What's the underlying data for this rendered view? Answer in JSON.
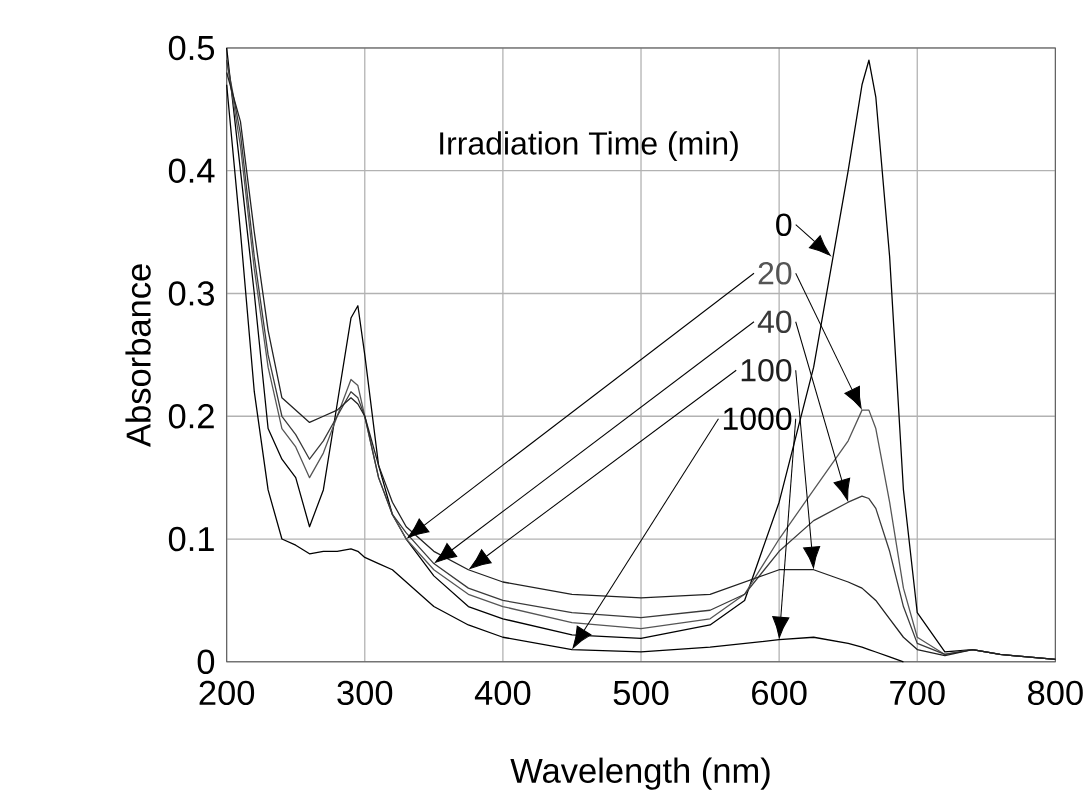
{
  "chart_data": {
    "type": "line",
    "legend_title": "Irradiation Time (min)",
    "xlabel": "Wavelength (nm)",
    "ylabel": "Absorbance",
    "x": [
      200,
      210,
      220,
      230,
      240,
      250,
      260,
      270,
      280,
      290,
      295,
      300,
      310,
      320,
      330,
      350,
      375,
      400,
      450,
      500,
      550,
      575,
      600,
      625,
      650,
      660,
      665,
      670,
      680,
      690,
      700,
      720,
      740,
      760,
      800
    ],
    "xlim": [
      200,
      800
    ],
    "xticks": [
      200,
      300,
      400,
      500,
      600,
      700,
      800
    ],
    "ylim": [
      0,
      0.5
    ],
    "yticks": [
      0,
      0.1,
      0.2,
      0.3,
      0.4,
      0.5
    ],
    "grid": true,
    "legend": "top right",
    "marker": "none",
    "line_style": "solid",
    "series": [
      {
        "name": "0",
        "color": "#000000",
        "values": [
          0.5,
          0.4,
          0.3,
          0.19,
          0.165,
          0.15,
          0.11,
          0.14,
          0.21,
          0.28,
          0.29,
          0.25,
          0.16,
          0.12,
          0.1,
          0.07,
          0.045,
          0.035,
          0.022,
          0.019,
          0.03,
          0.05,
          0.13,
          0.24,
          0.4,
          0.47,
          0.49,
          0.46,
          0.33,
          0.14,
          0.04,
          0.008,
          0.01,
          0.006,
          0.002
        ]
      },
      {
        "name": "20",
        "color": "#555555",
        "values": [
          0.49,
          0.42,
          0.32,
          0.24,
          0.19,
          0.175,
          0.15,
          0.17,
          0.2,
          0.23,
          0.225,
          0.2,
          0.15,
          0.12,
          0.1,
          0.075,
          0.055,
          0.045,
          0.032,
          0.027,
          0.035,
          0.055,
          0.1,
          0.14,
          0.18,
          0.205,
          0.205,
          0.19,
          0.13,
          0.06,
          0.02,
          0.006,
          0.01,
          0.006,
          0.002
        ]
      },
      {
        "name": "40",
        "color": "#3a3a3a",
        "values": [
          0.49,
          0.43,
          0.33,
          0.25,
          0.2,
          0.185,
          0.165,
          0.18,
          0.2,
          0.22,
          0.215,
          0.2,
          0.15,
          0.12,
          0.105,
          0.08,
          0.06,
          0.05,
          0.04,
          0.036,
          0.042,
          0.055,
          0.09,
          0.115,
          0.13,
          0.135,
          0.133,
          0.125,
          0.09,
          0.045,
          0.015,
          0.006,
          0.01,
          0.006,
          0.002
        ]
      },
      {
        "name": "100",
        "color": "#202020",
        "values": [
          0.48,
          0.44,
          0.35,
          0.27,
          0.215,
          0.205,
          0.195,
          0.2,
          0.205,
          0.215,
          0.21,
          0.2,
          0.16,
          0.13,
          0.11,
          0.09,
          0.075,
          0.065,
          0.055,
          0.052,
          0.055,
          0.065,
          0.075,
          0.075,
          0.065,
          0.06,
          0.055,
          0.05,
          0.035,
          0.02,
          0.01,
          0.005,
          0.01,
          0.006,
          0.002
        ]
      },
      {
        "name": "1000",
        "color": "#000000",
        "values": [
          0.47,
          0.35,
          0.22,
          0.14,
          0.1,
          0.095,
          0.088,
          0.09,
          0.09,
          0.092,
          0.09,
          0.085,
          0.08,
          0.075,
          0.065,
          0.045,
          0.03,
          0.02,
          0.01,
          0.008,
          0.012,
          0.015,
          0.018,
          0.02,
          0.015,
          0.012,
          0.01,
          0.008,
          0.004,
          0,
          null,
          null,
          null,
          null,
          null
        ]
      }
    ]
  }
}
